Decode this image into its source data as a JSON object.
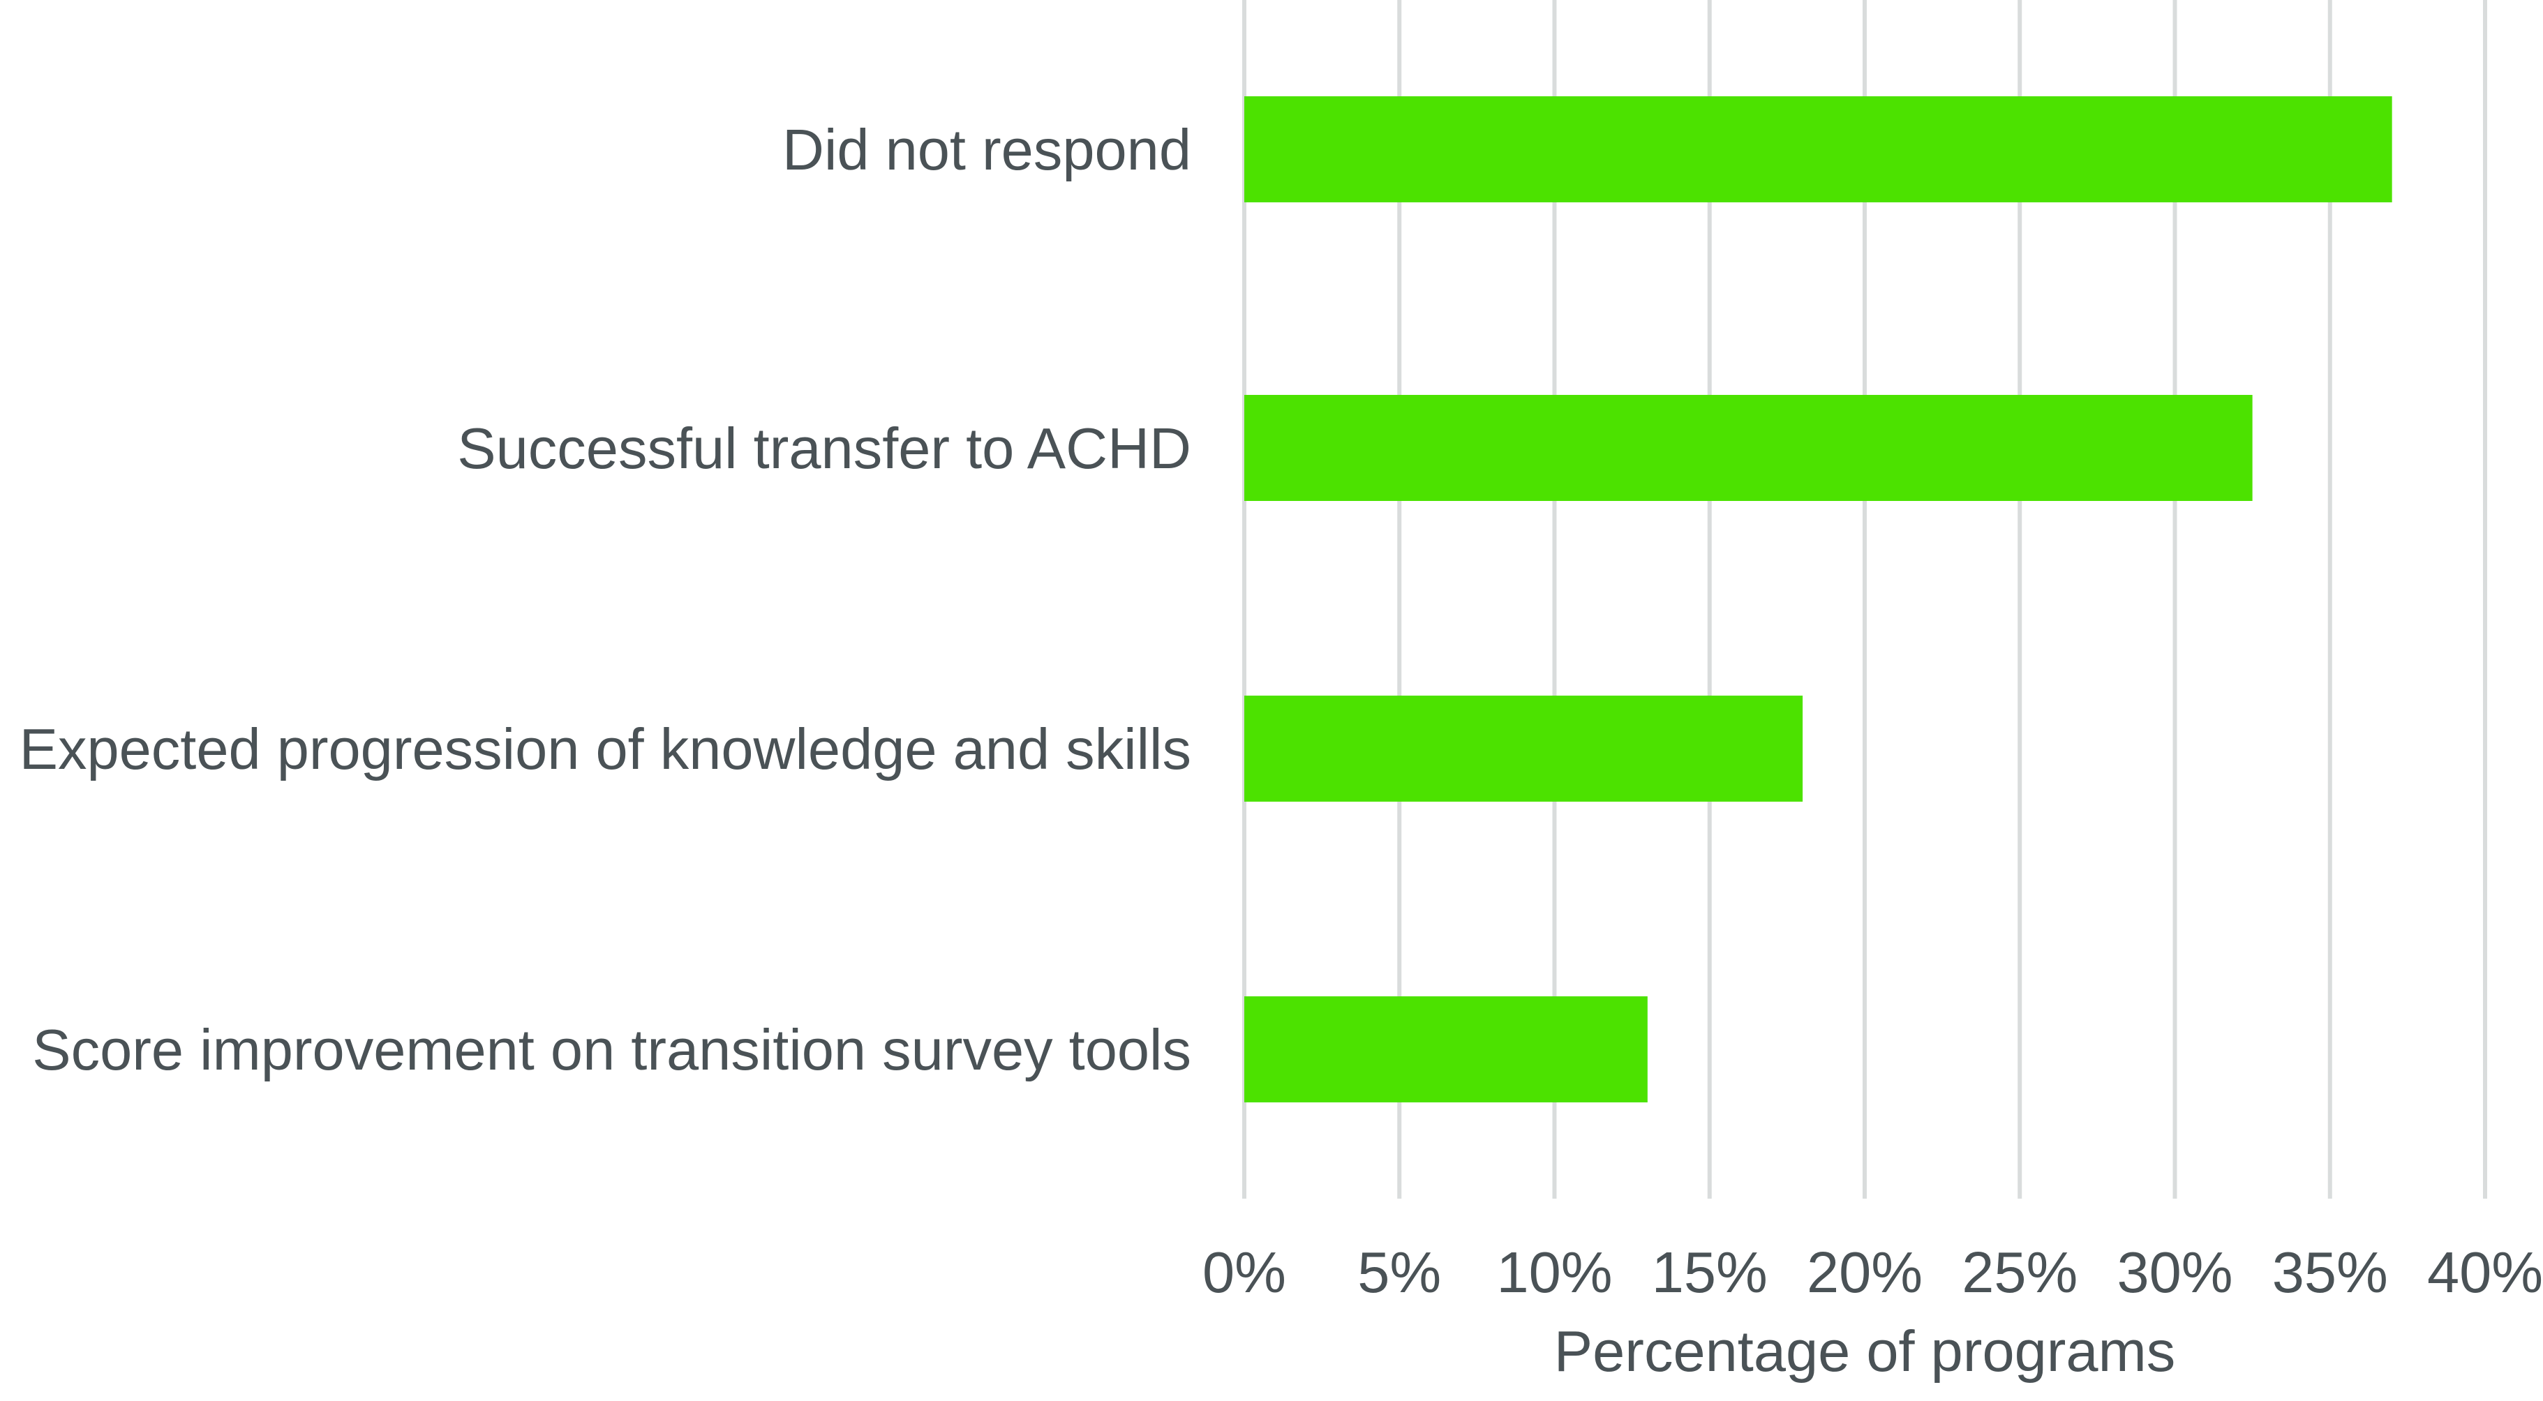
{
  "chart_data": {
    "type": "bar",
    "orientation": "horizontal",
    "title": "",
    "xlabel": "Percentage of programs",
    "ylabel": "",
    "categories": [
      "Did not respond",
      "Successful transfer to ACHD",
      "Expected progression of knowledge and skills",
      "Score improvement on transition survey tools"
    ],
    "values": [
      37,
      32.5,
      18,
      13
    ],
    "value_unit": "%",
    "xlim": [
      0,
      40
    ],
    "xticks": [
      0,
      5,
      10,
      15,
      20,
      25,
      30,
      35,
      40
    ],
    "xtick_labels": [
      "0%",
      "5%",
      "10%",
      "15%",
      "20%",
      "25%",
      "30%",
      "35%",
      "40%"
    ],
    "grid": "vertical",
    "legend": "none",
    "colors": {
      "bar": "#4ce200",
      "grid": "#d9dcdc",
      "text": "#4a5256"
    }
  }
}
